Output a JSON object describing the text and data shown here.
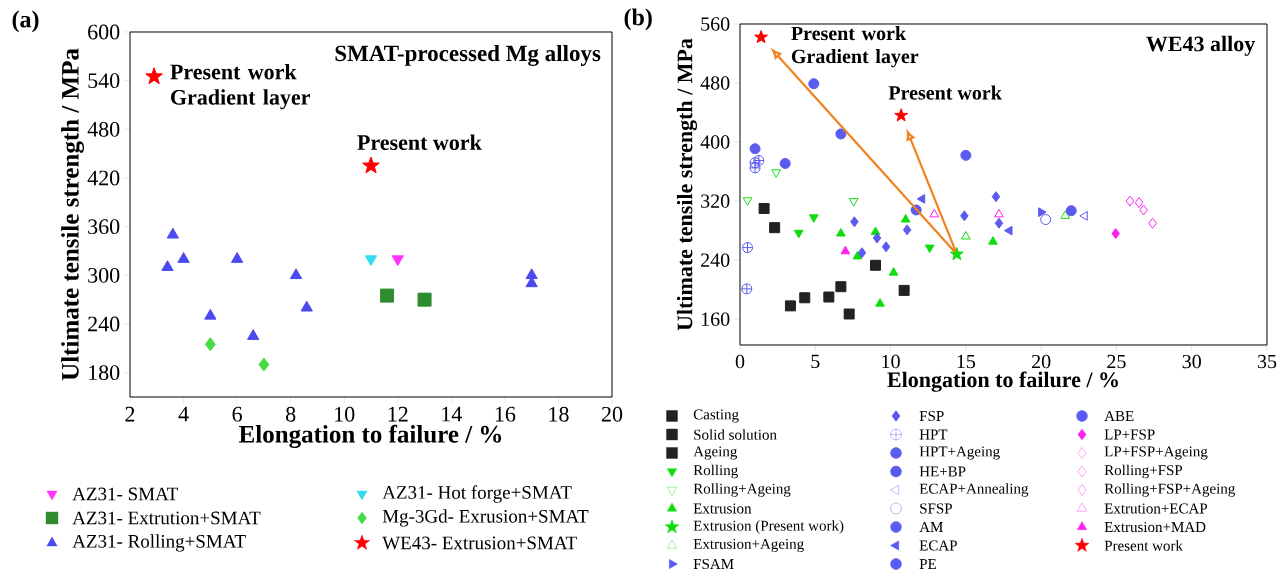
{
  "chart_data": [
    {
      "type": "scatter",
      "title": "SMAT-processed Mg alloys",
      "xlabel": "Elongation to failure / %",
      "ylabel": "Ultimate tensile strength / MPa",
      "xlim": [
        2,
        20
      ],
      "ylim": [
        150,
        600
      ],
      "xticks": [
        2,
        4,
        6,
        8,
        10,
        12,
        14,
        16,
        18,
        20
      ],
      "yticks": [
        180,
        240,
        300,
        360,
        420,
        480,
        540,
        600
      ],
      "legend": "bottom",
      "annotations": [
        "(a)",
        {
          "text": "Present work Gradient layer",
          "x": 2.9,
          "y": 545
        },
        {
          "text": "Present work",
          "x": 11,
          "y": 435
        }
      ],
      "series": [
        {
          "name": "AZ31- SMAT",
          "color": "#ff33ff",
          "marker": "triangle-down",
          "x": [
            12
          ],
          "values": [
            320
          ]
        },
        {
          "name": "AZ31- Extrution+SMAT",
          "color": "#2e8b2e",
          "marker": "square",
          "x": [
            11.6,
            13
          ],
          "values": [
            275,
            270
          ]
        },
        {
          "name": "AZ31- Rolling+SMAT",
          "color": "#4a4aee",
          "marker": "triangle",
          "x": [
            3.6,
            3.4,
            4,
            6,
            8.2,
            5,
            8.6,
            6.6,
            17,
            17
          ],
          "values": [
            350,
            310,
            320,
            320,
            300,
            250,
            260,
            225,
            300,
            290
          ]
        },
        {
          "name": "AZ31- Hot forge+SMAT",
          "color": "#33ddee",
          "marker": "triangle-down",
          "x": [
            11
          ],
          "values": [
            320
          ]
        },
        {
          "name": "Mg-3Gd- Exrusion+SMAT",
          "color": "#44dd44",
          "marker": "diamond",
          "x": [
            5,
            7
          ],
          "values": [
            215,
            190
          ]
        },
        {
          "name": "WE43- Extrusion+SMAT",
          "color": "#ff0000",
          "marker": "star",
          "x": [
            2.9,
            11
          ],
          "values": [
            545,
            435
          ]
        }
      ]
    },
    {
      "type": "scatter",
      "title": "WE43 alloy",
      "xlabel": "Elongation to failure / %",
      "ylabel": "Ultimate tensile strength / MPa",
      "xlim": [
        0,
        35
      ],
      "ylim": [
        125,
        560
      ],
      "xticks": [
        0,
        5,
        10,
        15,
        20,
        25,
        30,
        35
      ],
      "yticks": [
        160,
        240,
        320,
        400,
        480,
        560
      ],
      "legend": "bottom",
      "annotations": [
        "(b)",
        {
          "text": "Present work Gradient layer",
          "x": 1.4,
          "y": 542
        },
        {
          "text": "Present work",
          "x": 10.7,
          "y": 436
        }
      ],
      "series": [
        {
          "name": "Casting",
          "color": "#222222",
          "marker": "square",
          "x": [
            3.35,
            4.3,
            5.9,
            7.25
          ],
          "values": [
            178,
            189,
            190,
            167
          ]
        },
        {
          "name": "Solid solution",
          "color": "#222222",
          "marker": "square",
          "x": [
            1.6,
            6.7
          ],
          "values": [
            310,
            204
          ]
        },
        {
          "name": "Ageing",
          "color": "#222222",
          "marker": "square",
          "x": [
            2.3,
            9,
            10.9
          ],
          "values": [
            284,
            233,
            199
          ]
        },
        {
          "name": "Rolling",
          "color": "#11dd11",
          "marker": "triangle-down",
          "x": [
            3.9,
            4.9,
            12.6
          ],
          "values": [
            277,
            298,
            257
          ]
        },
        {
          "name": "Rolling+Ageing",
          "color": "#11dd11",
          "marker": "triangle-down-open",
          "x": [
            0.5,
            2.4,
            7.55
          ],
          "values": [
            321,
            359,
            320
          ]
        },
        {
          "name": "Extrusion",
          "color": "#11dd11",
          "marker": "triangle",
          "x": [
            6.7,
            9.3,
            10.2,
            11,
            9,
            16.8,
            7.8
          ],
          "values": [
            276,
            181,
            223,
            295,
            278,
            265,
            245
          ]
        },
        {
          "name": "Extrusion (Present work)",
          "color": "#11dd11",
          "marker": "star",
          "x": [
            14.4
          ],
          "values": [
            248
          ]
        },
        {
          "name": "Extrusion+Ageing",
          "color": "#11dd11",
          "marker": "triangle-open",
          "x": [
            15,
            21.6
          ],
          "values": [
            272,
            300
          ]
        },
        {
          "name": "FSAM",
          "color": "#5b5bf0",
          "marker": "triangle-right",
          "x": [
            20
          ],
          "values": [
            305
          ]
        },
        {
          "name": "FSP",
          "color": "#5b5bf0",
          "marker": "diamond",
          "x": [
            7.6,
            8.1,
            9.1,
            9.7,
            11.1,
            14.9,
            17,
            17.2
          ],
          "values": [
            292,
            250,
            270,
            258,
            281,
            300,
            326,
            290
          ]
        },
        {
          "name": "HPT",
          "color": "#5b5bf0",
          "marker": "cross",
          "x": [
            0.5,
            0.45,
            1.0,
            1.25,
            1.0
          ],
          "values": [
            257,
            201,
            365,
            375,
            372
          ]
        },
        {
          "name": "HPT+Ageing",
          "color": "#5b5bf0",
          "marker": "circle",
          "x": [
            1.0
          ],
          "values": [
            391
          ]
        },
        {
          "name": "HE+BP",
          "color": "#5b5bf0",
          "marker": "circle",
          "x": [
            6.7
          ],
          "values": [
            411
          ]
        },
        {
          "name": "ECAP+Annealing",
          "color": "#5b5bf0",
          "marker": "triangle-left-open",
          "x": [
            22.9
          ],
          "values": [
            300
          ]
        },
        {
          "name": "SFSP",
          "color": "#5b5bf0",
          "marker": "circle-open",
          "x": [
            20.3
          ],
          "values": [
            295
          ]
        },
        {
          "name": "AM",
          "color": "#5b5bf0",
          "marker": "circle",
          "x": [
            11.7
          ],
          "values": [
            308
          ]
        },
        {
          "name": "ECAP",
          "color": "#5b5bf0",
          "marker": "triangle-left",
          "x": [
            12.1,
            17.9
          ],
          "values": [
            323,
            280
          ]
        },
        {
          "name": "PE",
          "color": "#5b5bf0",
          "marker": "circle",
          "x": [
            22
          ],
          "values": [
            307
          ]
        },
        {
          "name": "ABE",
          "color": "#5b5bf0",
          "marker": "circle",
          "x": [
            4.9,
            3.0,
            15
          ],
          "values": [
            479,
            371,
            382
          ]
        },
        {
          "name": "LP+FSP",
          "color": "#ff22ee",
          "marker": "diamond",
          "x": [
            24.95
          ],
          "values": [
            276
          ]
        },
        {
          "name": "LP+FSP+Ageing",
          "color": "#ff22ee",
          "marker": "diamond-open",
          "x": [
            25.9
          ],
          "values": [
            320
          ]
        },
        {
          "name": "Rolling+FSP",
          "color": "#ff22ee",
          "marker": "diamond-open",
          "x": [
            26.5,
            26.8
          ],
          "values": [
            318,
            308
          ]
        },
        {
          "name": "Rolling+FSP+Ageing",
          "color": "#ff22ee",
          "marker": "diamond-open",
          "x": [
            27.4
          ],
          "values": [
            290
          ]
        },
        {
          "name": "Extrution+ECAP",
          "color": "#ff22ee",
          "marker": "triangle-open",
          "x": [
            12.9,
            17.2
          ],
          "values": [
            302,
            302
          ]
        },
        {
          "name": "Extrusion+MAD",
          "color": "#ff22ee",
          "marker": "triangle",
          "x": [
            7.0
          ],
          "values": [
            252
          ]
        },
        {
          "name": "Present work",
          "color": "#ff0000",
          "marker": "star",
          "x": [
            1.4,
            10.7
          ],
          "values": [
            542,
            436
          ]
        }
      ]
    }
  ]
}
